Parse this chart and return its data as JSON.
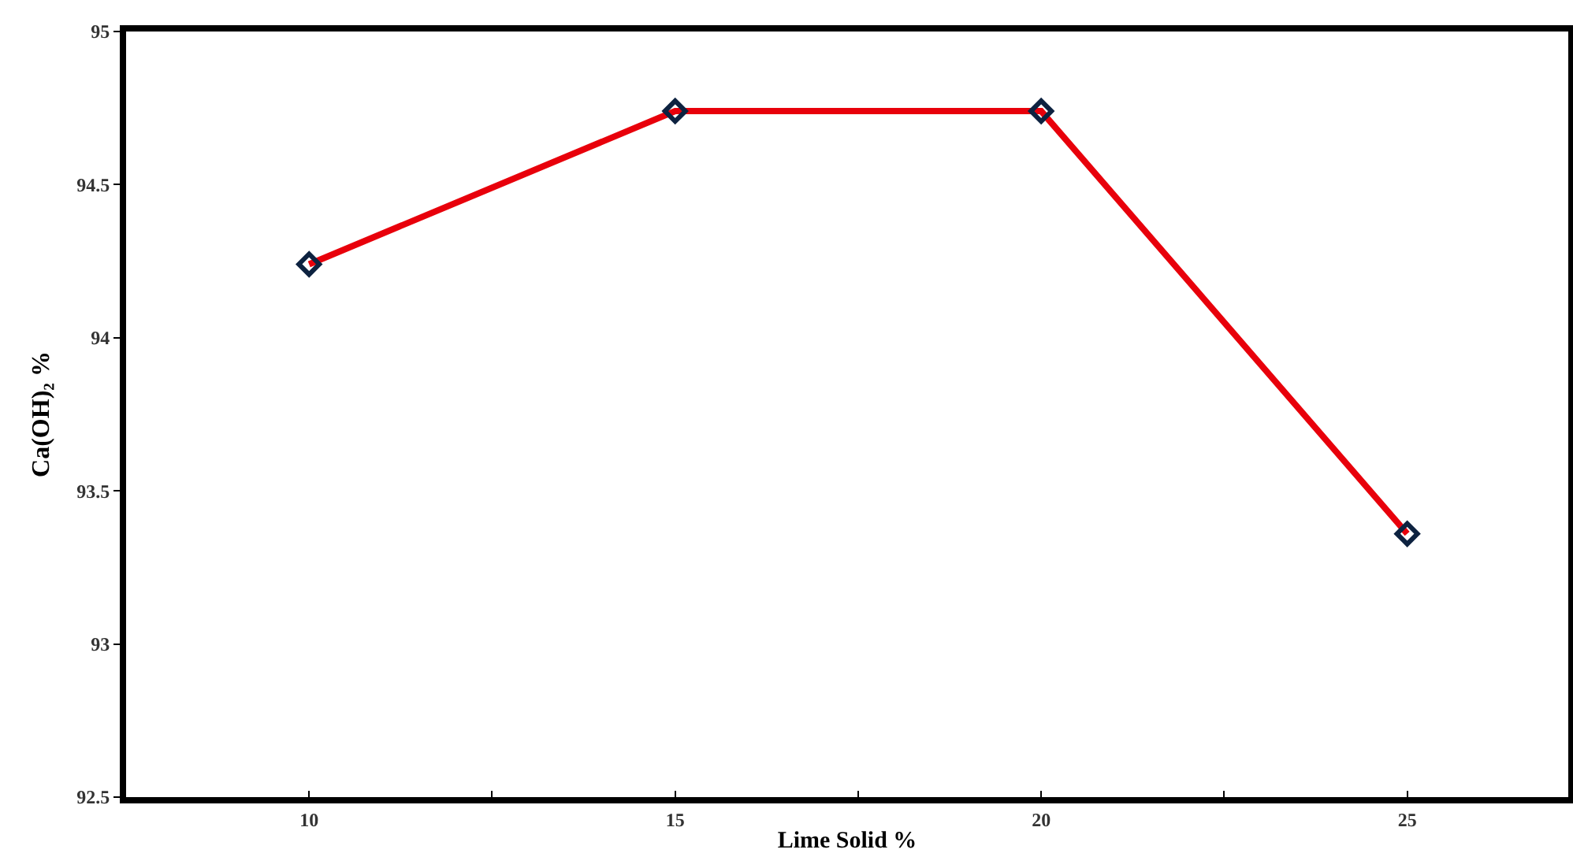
{
  "chart_data": {
    "type": "line",
    "xlabel": "Lime Solid %",
    "ylabel": "Ca(OH)₂ %",
    "x": [
      10,
      15,
      20,
      25
    ],
    "series": [
      {
        "color": "#e8000b",
        "values": [
          94.24,
          94.74,
          94.74,
          93.36
        ]
      }
    ],
    "xlim": [
      7.5,
      27.2
    ],
    "xticks": [
      10,
      {
        "value": 12.5,
        "label": null
      },
      15,
      {
        "value": 17.5,
        "label": null
      },
      20,
      {
        "value": 22.5,
        "label": null
      },
      25
    ],
    "ylim": [
      92.5,
      95
    ],
    "yticks": [
      92.5,
      93,
      93.5,
      94,
      94.5,
      95
    ],
    "marker": "diamond",
    "line_style": "solid",
    "grid": false
  }
}
